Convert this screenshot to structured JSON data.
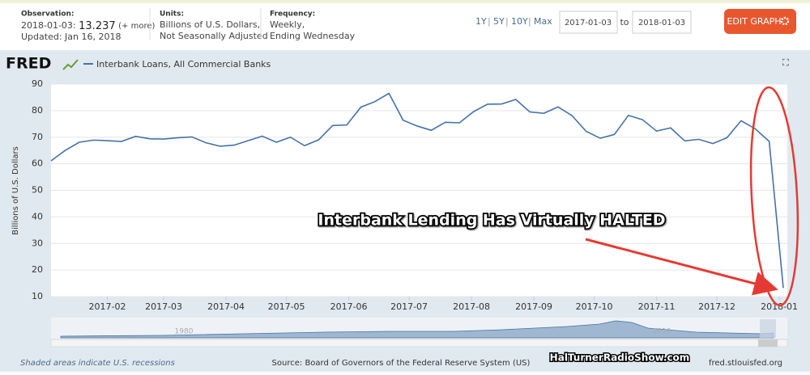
{
  "header": {
    "observation": {
      "label": "Observation:",
      "date": "2018-01-03:",
      "value": "13.237",
      "more": "(+ more)",
      "updated": "Updated: Jan 16, 2018"
    },
    "units": {
      "label": "Units:",
      "lines": [
        "Billions of U.S. Dollars,",
        "Not Seasonally Adjusted"
      ]
    },
    "frequency": {
      "label": "Frequency:",
      "lines": [
        "Weekly,",
        "Ending Wednesday"
      ]
    },
    "ranges": [
      "1Y",
      "5Y",
      "10Y",
      "Max"
    ],
    "date_from": "2017-01-03",
    "date_to_label": "to",
    "date_to": "2018-01-03",
    "edit_button": "EDIT GRAPH"
  },
  "logo": "FRED",
  "chart_data": {
    "type": "line",
    "ylabel": "Billions of U.S. Dollars",
    "annotation": "Interbank Lending Has Virtually HALTED",
    "x": [
      "2017-01-04",
      "2017-01-11",
      "2017-01-18",
      "2017-01-25",
      "2017-02-01",
      "2017-02-08",
      "2017-02-15",
      "2017-02-22",
      "2017-03-01",
      "2017-03-08",
      "2017-03-15",
      "2017-03-22",
      "2017-03-29",
      "2017-04-05",
      "2017-04-12",
      "2017-04-19",
      "2017-04-26",
      "2017-05-03",
      "2017-05-10",
      "2017-05-17",
      "2017-05-24",
      "2017-05-31",
      "2017-06-07",
      "2017-06-14",
      "2017-06-21",
      "2017-06-28",
      "2017-07-05",
      "2017-07-12",
      "2017-07-19",
      "2017-07-26",
      "2017-08-02",
      "2017-08-09",
      "2017-08-16",
      "2017-08-23",
      "2017-08-30",
      "2017-09-06",
      "2017-09-13",
      "2017-09-20",
      "2017-09-27",
      "2017-10-04",
      "2017-10-11",
      "2017-10-18",
      "2017-10-25",
      "2017-11-01",
      "2017-11-08",
      "2017-11-15",
      "2017-11-22",
      "2017-11-29",
      "2017-12-06",
      "2017-12-13",
      "2017-12-20",
      "2017-12-27",
      "2018-01-03"
    ],
    "series": [
      {
        "name": "Interbank Loans, All Commercial Banks",
        "color": "#4572a7",
        "values": [
          61.1,
          65.0,
          68.1,
          68.9,
          68.7,
          68.4,
          70.3,
          69.4,
          69.3,
          69.8,
          70.1,
          67.9,
          66.6,
          67.0,
          68.7,
          70.4,
          68.1,
          70.0,
          66.8,
          69.0,
          74.4,
          74.6,
          81.3,
          83.4,
          86.5,
          76.4,
          74.2,
          72.6,
          75.6,
          75.4,
          79.6,
          82.4,
          82.5,
          84.2,
          79.5,
          79.0,
          81.4,
          78.1,
          72.2,
          69.6,
          71.0,
          78.2,
          76.6,
          72.3,
          73.5,
          68.6,
          69.2,
          67.6,
          69.8,
          76.2,
          73.2,
          68.4,
          13.237
        ]
      }
    ],
    "xlim": [
      "2017-01-04",
      "2018-01-05"
    ],
    "xticks": [
      {
        "value": "2017-02-01",
        "label": "2017-02"
      },
      {
        "value": "2017-03-01",
        "label": "2017-03"
      },
      {
        "value": "2017-04-01",
        "label": "2017-04"
      },
      {
        "value": "2017-05-01",
        "label": "2017-05"
      },
      {
        "value": "2017-06-01",
        "label": "2017-06"
      },
      {
        "value": "2017-07-01",
        "label": "2017-07"
      },
      {
        "value": "2017-08-01",
        "label": "2017-08"
      },
      {
        "value": "2017-09-01",
        "label": "2017-09"
      },
      {
        "value": "2017-10-01",
        "label": "2017-10"
      },
      {
        "value": "2017-11-01",
        "label": "2017-11"
      },
      {
        "value": "2017-12-01",
        "label": "2017-12"
      },
      {
        "value": "2018-01-01",
        "label": "2018-01"
      }
    ],
    "ylim": [
      10,
      90
    ],
    "yticks": [
      10,
      20,
      30,
      40,
      50,
      60,
      70,
      80,
      90
    ],
    "grid": true
  },
  "navigator": {
    "labels": [
      "1980",
      "2010"
    ]
  },
  "footer": {
    "recessions": "Shaded areas indicate U.S. recessions",
    "source": "Source: Board of Governors of the Federal Reserve System (US)",
    "watermark": "HalTurnerRadioShow.com",
    "site": "fred.stlouisfed.org"
  }
}
